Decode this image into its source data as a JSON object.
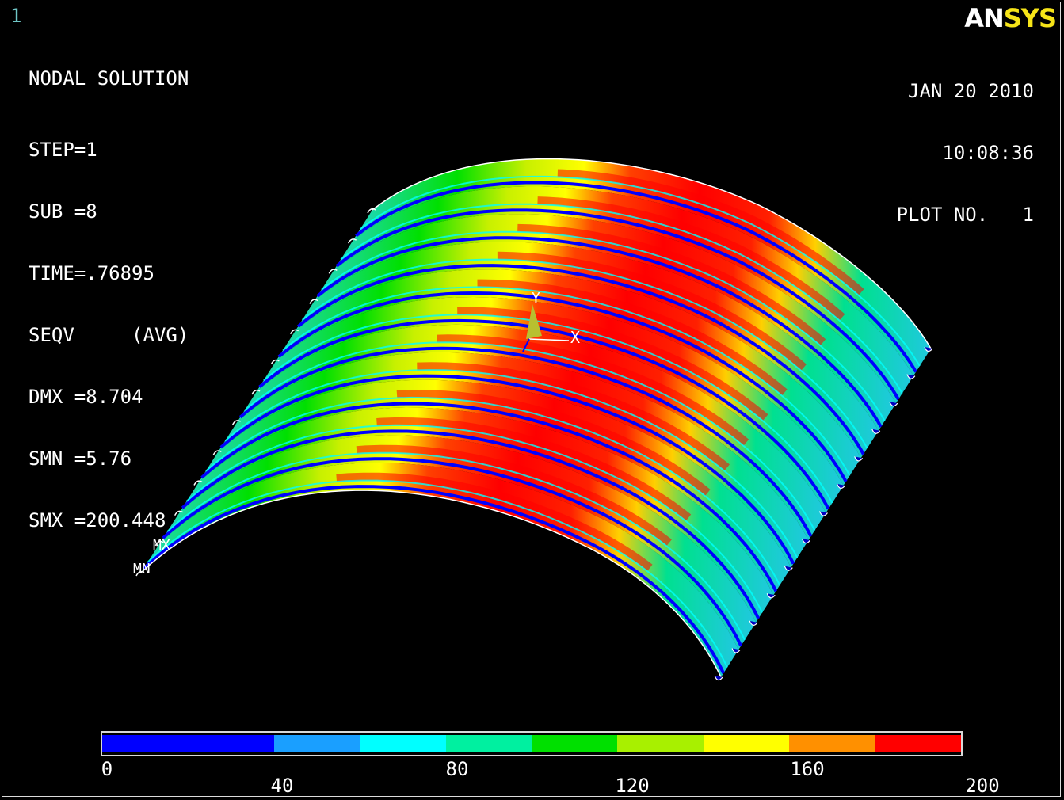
{
  "window": {
    "number": "1"
  },
  "logo": {
    "part1": "AN",
    "part2": "SYS"
  },
  "solution_info": {
    "title": "NODAL SOLUTION",
    "lines": [
      "STEP=1",
      "SUB =8",
      "TIME=.76895",
      "SEQV     (AVG)",
      "DMX =8.704",
      "SMN =5.76",
      "SMX =200.448"
    ]
  },
  "timestamp": {
    "date": "JAN 20 2010",
    "time": "10:08:36",
    "plot": "PLOT NO.   1"
  },
  "triad": {
    "x_label": "X",
    "y_label": "Y"
  },
  "markers": {
    "max": "MX",
    "min": "MN"
  },
  "legend": {
    "colors": [
      "#0000ff",
      "#0b96ff",
      "#00ffff",
      "#00ffa0",
      "#00e600",
      "#a8f000",
      "#ffff00",
      "#ff9000",
      "#ff0000"
    ],
    "color_bands": [
      {
        "color": "#0000ff",
        "span": 2
      },
      {
        "color": "#1a9fff",
        "span": 1
      },
      {
        "color": "#00ffff",
        "span": 1
      },
      {
        "color": "#00f0a0",
        "span": 1
      },
      {
        "color": "#00e000",
        "span": 1
      },
      {
        "color": "#a8f000",
        "span": 1
      },
      {
        "color": "#ffff00",
        "span": 1
      },
      {
        "color": "#ff9000",
        "span": 1
      },
      {
        "color": "#ff0000",
        "span": 1
      }
    ],
    "ticks": [
      {
        "label": "0",
        "value": 0,
        "row": 0
      },
      {
        "label": "40",
        "value": 40,
        "row": 1
      },
      {
        "label": "80",
        "value": 80,
        "row": 0
      },
      {
        "label": "120",
        "value": 120,
        "row": 1
      },
      {
        "label": "160",
        "value": 160,
        "row": 0
      },
      {
        "label": "200",
        "value": 200,
        "row": 1
      }
    ]
  }
}
